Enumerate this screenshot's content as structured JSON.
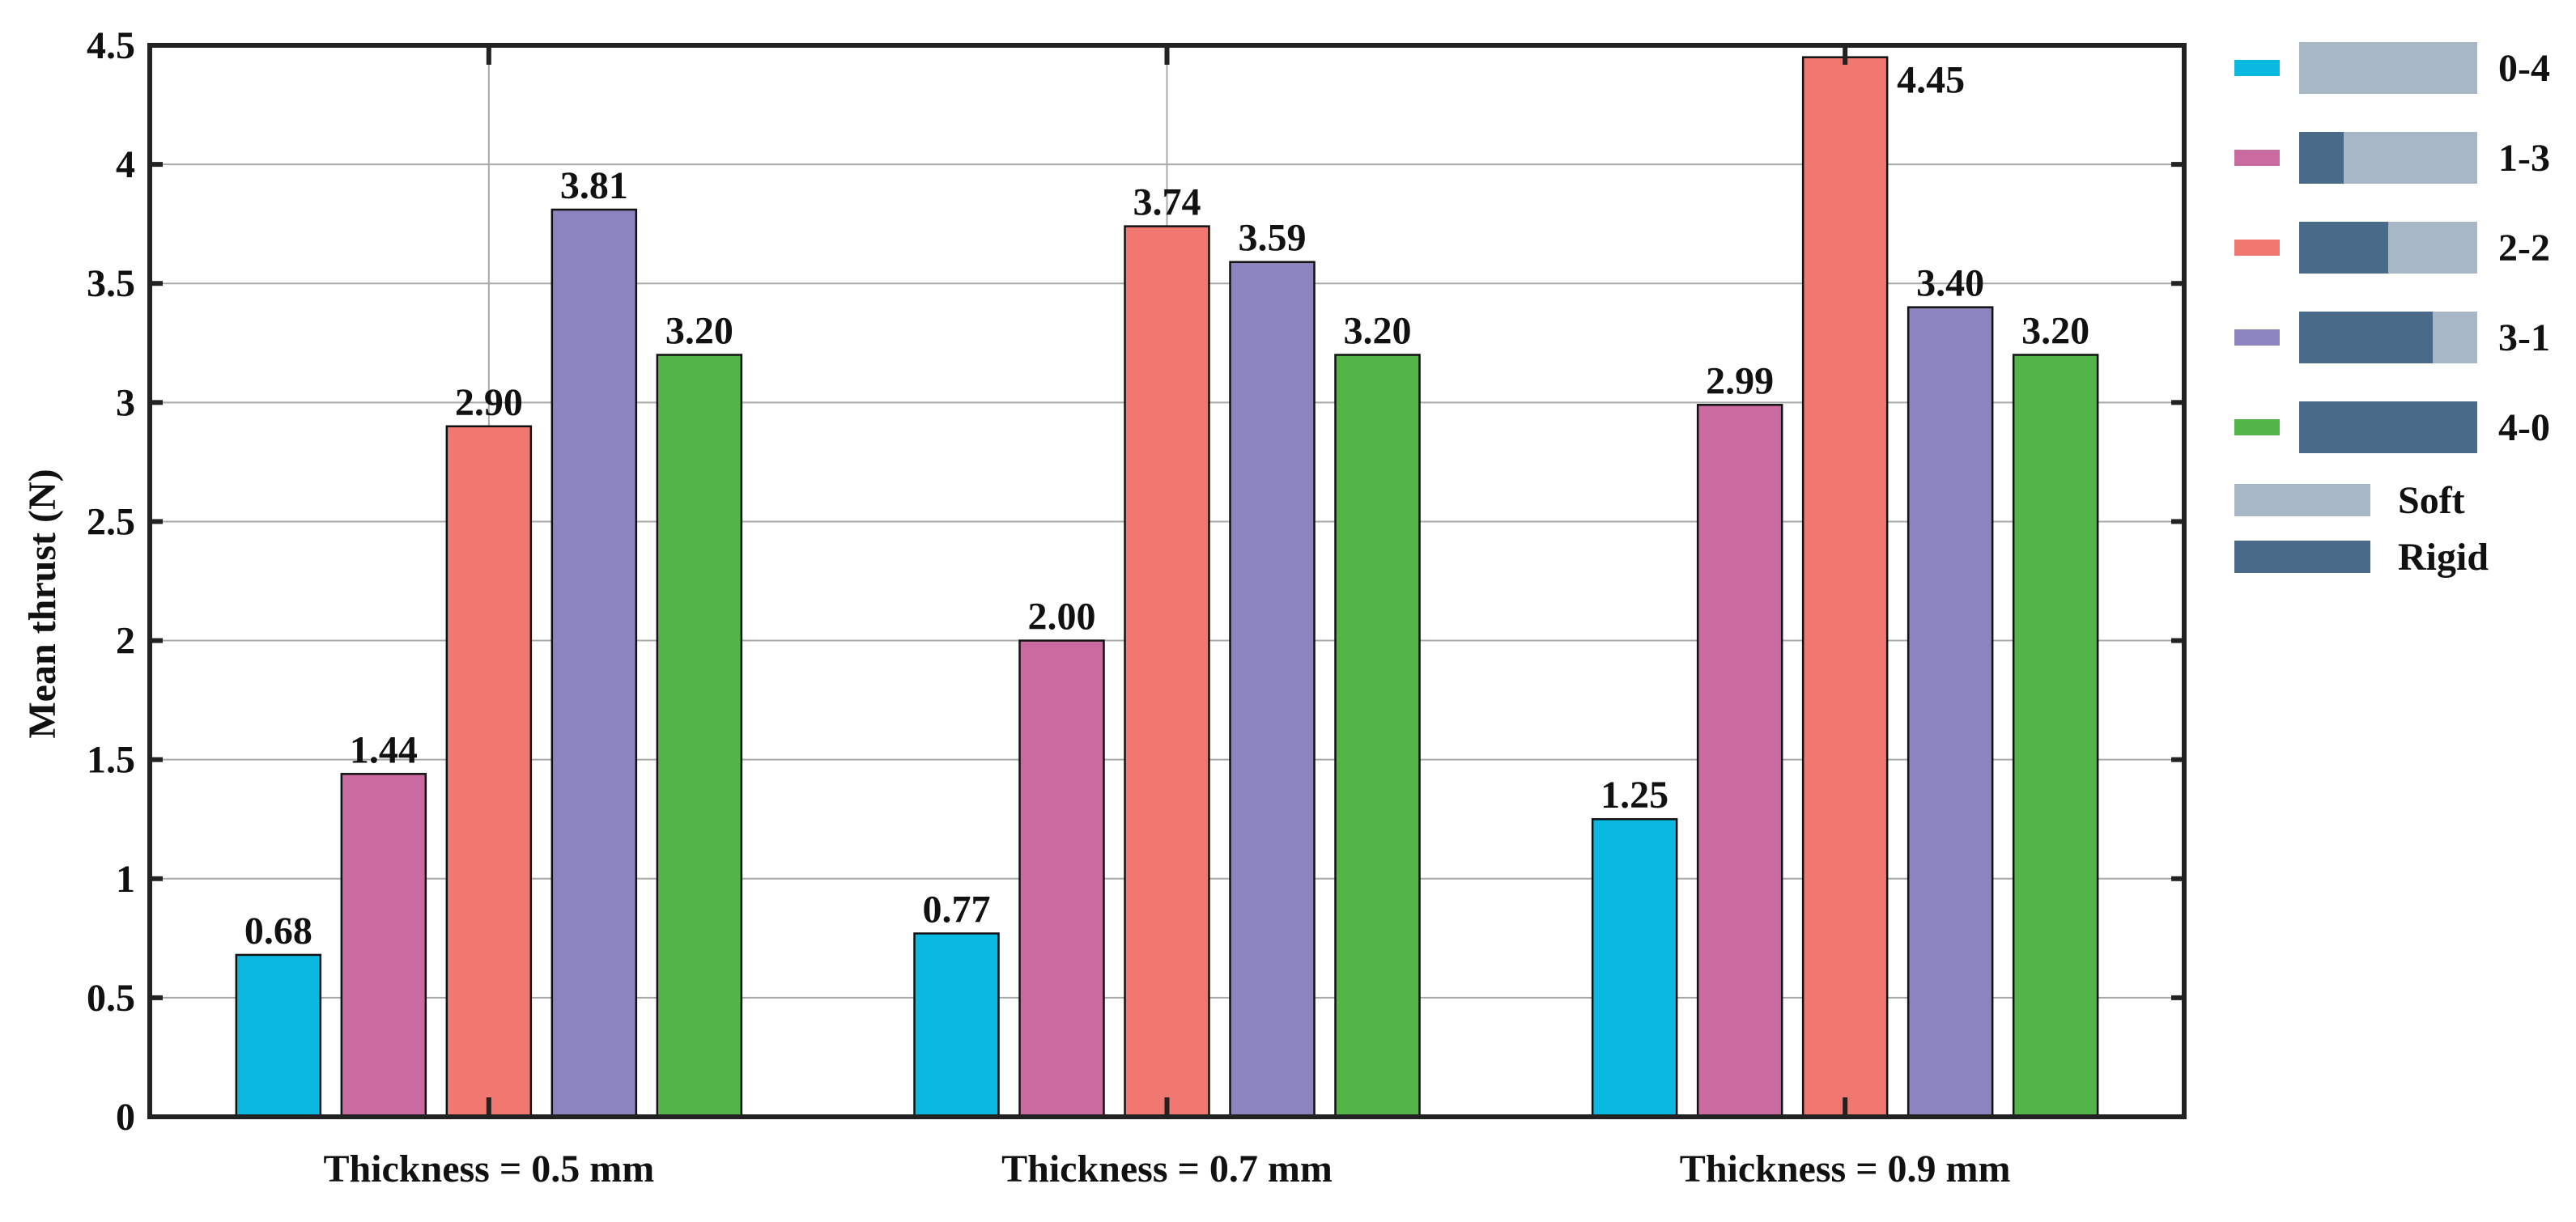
{
  "chart_data": {
    "type": "bar",
    "title": "",
    "xlabel": "",
    "ylabel": "Mean thrust (N)",
    "ylim": [
      0,
      4.5
    ],
    "yticks": [
      0,
      0.5,
      1,
      1.5,
      2,
      2.5,
      3,
      3.5,
      4,
      4.5
    ],
    "ytick_labels": [
      "0",
      "0.5",
      "1",
      "1.5",
      "2",
      "2.5",
      "3",
      "3.5",
      "4",
      "4.5"
    ],
    "grid": true,
    "categories": [
      "Thickness = 0.5 mm",
      "Thickness = 0.7 mm",
      "Thickness = 0.9 mm"
    ],
    "series": [
      {
        "name": "0-4",
        "color": "#0ab8e0",
        "values": [
          0.68,
          0.77,
          1.25
        ],
        "labels": [
          "0.68",
          "0.77",
          "1.25"
        ],
        "composition": {
          "rigid": 0,
          "soft": 4
        }
      },
      {
        "name": "1-3",
        "color": "#c96ba0",
        "values": [
          1.44,
          2.0,
          2.99
        ],
        "labels": [
          "1.44",
          "2.00",
          "2.99"
        ],
        "composition": {
          "rigid": 1,
          "soft": 3
        }
      },
      {
        "name": "2-2",
        "color": "#f07870",
        "values": [
          2.9,
          3.74,
          4.45
        ],
        "labels": [
          "2.90",
          "3.74",
          "4.45"
        ],
        "composition": {
          "rigid": 2,
          "soft": 2
        }
      },
      {
        "name": "3-1",
        "color": "#8b84bf",
        "values": [
          3.81,
          3.59,
          3.4
        ],
        "labels": [
          "3.81",
          "3.59",
          "3.40"
        ],
        "composition": {
          "rigid": 3,
          "soft": 1
        }
      },
      {
        "name": "4-0",
        "color": "#52b548",
        "values": [
          3.2,
          3.2,
          3.2
        ],
        "labels": [
          "3.20",
          "3.20",
          "3.20"
        ],
        "composition": {
          "rigid": 4,
          "soft": 0
        }
      }
    ],
    "legend": {
      "position": "right",
      "material_keys": [
        {
          "name": "Soft",
          "color": "#a7b7c6"
        },
        {
          "name": "Rigid",
          "color": "#4a6a8a"
        }
      ]
    }
  }
}
